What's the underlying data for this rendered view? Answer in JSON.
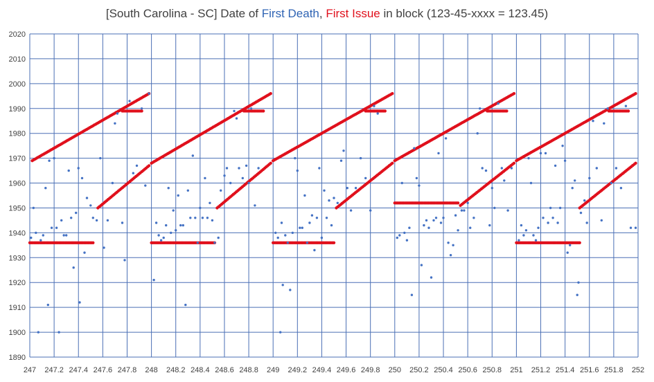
{
  "chart_data": {
    "type": "scatter",
    "title_segments": [
      {
        "text": "[South Carolina - SC] Date of ",
        "color": "default"
      },
      {
        "text": "First Death",
        "color": "blue"
      },
      {
        "text": ", ",
        "color": "default"
      },
      {
        "text": "First Issue",
        "color": "red"
      },
      {
        "text": " in block (123-45-xxxx = 123.45)",
        "color": "default"
      }
    ],
    "xlim": [
      247,
      252
    ],
    "ylim": [
      1890,
      2020
    ],
    "x_ticks": [
      "247",
      "247.2",
      "247.4",
      "247.6",
      "247.8",
      "248",
      "248.2",
      "248.4",
      "248.6",
      "248.8",
      "249",
      "249.2",
      "249.4",
      "249.6",
      "249.8",
      "250",
      "250.2",
      "250.4",
      "250.6",
      "250.8",
      "251",
      "251.2",
      "251.4",
      "251.6",
      "251.8",
      "252"
    ],
    "y_ticks": [
      "1890",
      "1900",
      "1910",
      "1920",
      "1930",
      "1940",
      "1950",
      "1960",
      "1970",
      "1980",
      "1990",
      "2000",
      "2010",
      "2020"
    ],
    "grid": true,
    "legend": "none",
    "colors": {
      "first_issue": "#e0101c",
      "first_death": "#4472c4",
      "grid": "#4a6fb5",
      "title_red": "#e0101c",
      "title_blue": "#2f64b4"
    },
    "series": [
      {
        "key": "first_issue",
        "segments": [
          {
            "kind": "ramp",
            "x0": 247.02,
            "x1": 247.98,
            "y0": 1969,
            "y1": 1996
          },
          {
            "kind": "ramp",
            "x0": 247.56,
            "x1": 247.98,
            "y0": 1950,
            "y1": 1967
          },
          {
            "kind": "flat",
            "x0": 247.0,
            "x1": 247.52,
            "y": 1936
          },
          {
            "kind": "flat",
            "x0": 247.76,
            "x1": 247.92,
            "y": 1989
          },
          {
            "kind": "ramp",
            "x0": 248.0,
            "x1": 248.98,
            "y0": 1968,
            "y1": 1996
          },
          {
            "kind": "ramp",
            "x0": 248.54,
            "x1": 248.98,
            "y0": 1950,
            "y1": 1968
          },
          {
            "kind": "flat",
            "x0": 248.0,
            "x1": 248.52,
            "y": 1936
          },
          {
            "kind": "flat",
            "x0": 248.76,
            "x1": 248.92,
            "y": 1989
          },
          {
            "kind": "ramp",
            "x0": 249.0,
            "x1": 249.98,
            "y0": 1969,
            "y1": 1996
          },
          {
            "kind": "ramp",
            "x0": 249.52,
            "x1": 249.98,
            "y0": 1950,
            "y1": 1968
          },
          {
            "kind": "flat",
            "x0": 249.0,
            "x1": 249.5,
            "y": 1936
          },
          {
            "kind": "flat",
            "x0": 249.76,
            "x1": 249.92,
            "y": 1989
          },
          {
            "kind": "ramp",
            "x0": 250.0,
            "x1": 250.98,
            "y0": 1969,
            "y1": 1996
          },
          {
            "kind": "ramp",
            "x0": 250.54,
            "x1": 250.98,
            "y0": 1951,
            "y1": 1968
          },
          {
            "kind": "flat",
            "x0": 250.0,
            "x1": 250.52,
            "y": 1952
          },
          {
            "kind": "flat",
            "x0": 250.76,
            "x1": 250.92,
            "y": 1989
          },
          {
            "kind": "ramp",
            "x0": 251.0,
            "x1": 251.98,
            "y0": 1969,
            "y1": 1996
          },
          {
            "kind": "ramp",
            "x0": 251.52,
            "x1": 251.98,
            "y0": 1950,
            "y1": 1968
          },
          {
            "kind": "flat",
            "x0": 251.0,
            "x1": 251.52,
            "y": 1936
          },
          {
            "kind": "flat",
            "x0": 251.76,
            "x1": 251.92,
            "y": 1989
          }
        ]
      },
      {
        "key": "first_death",
        "points": [
          [
            247.01,
            1938
          ],
          [
            247.03,
            1950
          ],
          [
            247.05,
            1940
          ],
          [
            247.07,
            1900
          ],
          [
            247.09,
            1937
          ],
          [
            247.11,
            1939
          ],
          [
            247.13,
            1958
          ],
          [
            247.15,
            1911
          ],
          [
            247.16,
            1969
          ],
          [
            247.18,
            1942
          ],
          [
            247.2,
            1970
          ],
          [
            247.22,
            1942
          ],
          [
            247.24,
            1900
          ],
          [
            247.26,
            1945
          ],
          [
            247.28,
            1939
          ],
          [
            247.3,
            1939
          ],
          [
            247.32,
            1965
          ],
          [
            247.34,
            1946
          ],
          [
            247.36,
            1926
          ],
          [
            247.38,
            1948
          ],
          [
            247.4,
            1966
          ],
          [
            247.41,
            1912
          ],
          [
            247.43,
            1962
          ],
          [
            247.45,
            1932
          ],
          [
            247.47,
            1954
          ],
          [
            247.5,
            1951
          ],
          [
            247.52,
            1946
          ],
          [
            247.55,
            1945
          ],
          [
            247.58,
            1970
          ],
          [
            247.61,
            1934
          ],
          [
            247.64,
            1945
          ],
          [
            247.68,
            1960
          ],
          [
            247.7,
            1984
          ],
          [
            247.72,
            1988
          ],
          [
            247.76,
            1944
          ],
          [
            247.78,
            1929
          ],
          [
            247.82,
            1993
          ],
          [
            247.85,
            1964
          ],
          [
            247.88,
            1967
          ],
          [
            247.92,
            1990
          ],
          [
            247.95,
            1959
          ],
          [
            247.98,
            1996
          ],
          [
            248.02,
            1921
          ],
          [
            248.04,
            1944
          ],
          [
            248.06,
            1939
          ],
          [
            248.08,
            1937
          ],
          [
            248.1,
            1938
          ],
          [
            248.12,
            1943
          ],
          [
            248.14,
            1958
          ],
          [
            248.16,
            1940
          ],
          [
            248.18,
            1949
          ],
          [
            248.2,
            1941
          ],
          [
            248.22,
            1955
          ],
          [
            248.24,
            1943
          ],
          [
            248.26,
            1943
          ],
          [
            248.28,
            1911
          ],
          [
            248.3,
            1957
          ],
          [
            248.32,
            1946
          ],
          [
            248.34,
            1971
          ],
          [
            248.36,
            1946
          ],
          [
            248.38,
            1936
          ],
          [
            248.4,
            1950
          ],
          [
            248.42,
            1946
          ],
          [
            248.44,
            1962
          ],
          [
            248.46,
            1946
          ],
          [
            248.48,
            1952
          ],
          [
            248.5,
            1945
          ],
          [
            248.52,
            1936
          ],
          [
            248.55,
            1938
          ],
          [
            248.57,
            1957
          ],
          [
            248.6,
            1963
          ],
          [
            248.62,
            1966
          ],
          [
            248.65,
            1960
          ],
          [
            248.68,
            1989
          ],
          [
            248.7,
            1986
          ],
          [
            248.72,
            1966
          ],
          [
            248.75,
            1962
          ],
          [
            248.78,
            1967
          ],
          [
            248.8,
            1960
          ],
          [
            248.82,
            1990
          ],
          [
            248.85,
            1951
          ],
          [
            248.88,
            1966
          ],
          [
            249.02,
            1940
          ],
          [
            249.04,
            1938
          ],
          [
            249.06,
            1900
          ],
          [
            249.07,
            1944
          ],
          [
            249.08,
            1919
          ],
          [
            249.1,
            1939
          ],
          [
            249.12,
            1936
          ],
          [
            249.14,
            1917
          ],
          [
            249.16,
            1940
          ],
          [
            249.18,
            1970
          ],
          [
            249.2,
            1965
          ],
          [
            249.22,
            1942
          ],
          [
            249.24,
            1942
          ],
          [
            249.26,
            1955
          ],
          [
            249.28,
            1936
          ],
          [
            249.3,
            1944
          ],
          [
            249.32,
            1947
          ],
          [
            249.34,
            1933
          ],
          [
            249.36,
            1946
          ],
          [
            249.38,
            1966
          ],
          [
            249.4,
            1938
          ],
          [
            249.42,
            1957
          ],
          [
            249.44,
            1946
          ],
          [
            249.46,
            1953
          ],
          [
            249.48,
            1943
          ],
          [
            249.5,
            1954
          ],
          [
            249.53,
            1952
          ],
          [
            249.56,
            1969
          ],
          [
            249.58,
            1973
          ],
          [
            249.61,
            1958
          ],
          [
            249.64,
            1949
          ],
          [
            249.68,
            1958
          ],
          [
            249.72,
            1970
          ],
          [
            249.76,
            1962
          ],
          [
            249.8,
            1949
          ],
          [
            249.83,
            1991
          ],
          [
            249.86,
            1988
          ],
          [
            250.02,
            1938
          ],
          [
            250.04,
            1939
          ],
          [
            250.06,
            1960
          ],
          [
            250.08,
            1940
          ],
          [
            250.1,
            1937
          ],
          [
            250.12,
            1942
          ],
          [
            250.14,
            1915
          ],
          [
            250.16,
            1974
          ],
          [
            250.18,
            1962
          ],
          [
            250.2,
            1959
          ],
          [
            250.22,
            1927
          ],
          [
            250.24,
            1943
          ],
          [
            250.26,
            1945
          ],
          [
            250.28,
            1942
          ],
          [
            250.3,
            1922
          ],
          [
            250.32,
            1945
          ],
          [
            250.34,
            1946
          ],
          [
            250.36,
            1972
          ],
          [
            250.38,
            1944
          ],
          [
            250.4,
            1946
          ],
          [
            250.42,
            1978
          ],
          [
            250.44,
            1936
          ],
          [
            250.46,
            1931
          ],
          [
            250.48,
            1935
          ],
          [
            250.5,
            1947
          ],
          [
            250.52,
            1941
          ],
          [
            250.55,
            1949
          ],
          [
            250.57,
            1949
          ],
          [
            250.6,
            1952
          ],
          [
            250.62,
            1942
          ],
          [
            250.65,
            1946
          ],
          [
            250.68,
            1980
          ],
          [
            250.7,
            1990
          ],
          [
            250.72,
            1966
          ],
          [
            250.75,
            1965
          ],
          [
            250.78,
            1943
          ],
          [
            250.8,
            1958
          ],
          [
            250.82,
            1950
          ],
          [
            250.85,
            1992
          ],
          [
            250.88,
            1966
          ],
          [
            250.9,
            1961
          ],
          [
            250.93,
            1949
          ],
          [
            250.96,
            1966
          ],
          [
            251.02,
            1937
          ],
          [
            251.04,
            1943
          ],
          [
            251.06,
            1939
          ],
          [
            251.08,
            1941
          ],
          [
            251.1,
            1970
          ],
          [
            251.12,
            1960
          ],
          [
            251.14,
            1939
          ],
          [
            251.16,
            1937
          ],
          [
            251.18,
            1942
          ],
          [
            251.2,
            1972
          ],
          [
            251.22,
            1946
          ],
          [
            251.24,
            1972
          ],
          [
            251.26,
            1944
          ],
          [
            251.28,
            1950
          ],
          [
            251.3,
            1946
          ],
          [
            251.32,
            1967
          ],
          [
            251.34,
            1944
          ],
          [
            251.36,
            1950
          ],
          [
            251.38,
            1975
          ],
          [
            251.4,
            1969
          ],
          [
            251.42,
            1932
          ],
          [
            251.44,
            1935
          ],
          [
            251.46,
            1958
          ],
          [
            251.48,
            1961
          ],
          [
            251.5,
            1915
          ],
          [
            251.51,
            1920
          ],
          [
            251.53,
            1948
          ],
          [
            251.56,
            1953
          ],
          [
            251.58,
            1944
          ],
          [
            251.6,
            1962
          ],
          [
            251.63,
            1985
          ],
          [
            251.66,
            1966
          ],
          [
            251.7,
            1945
          ],
          [
            251.72,
            1984
          ],
          [
            251.75,
            1990
          ],
          [
            251.78,
            1960
          ],
          [
            251.82,
            1966
          ],
          [
            251.86,
            1958
          ],
          [
            251.9,
            1991
          ],
          [
            251.94,
            1942
          ],
          [
            251.98,
            1942
          ]
        ]
      }
    ]
  }
}
